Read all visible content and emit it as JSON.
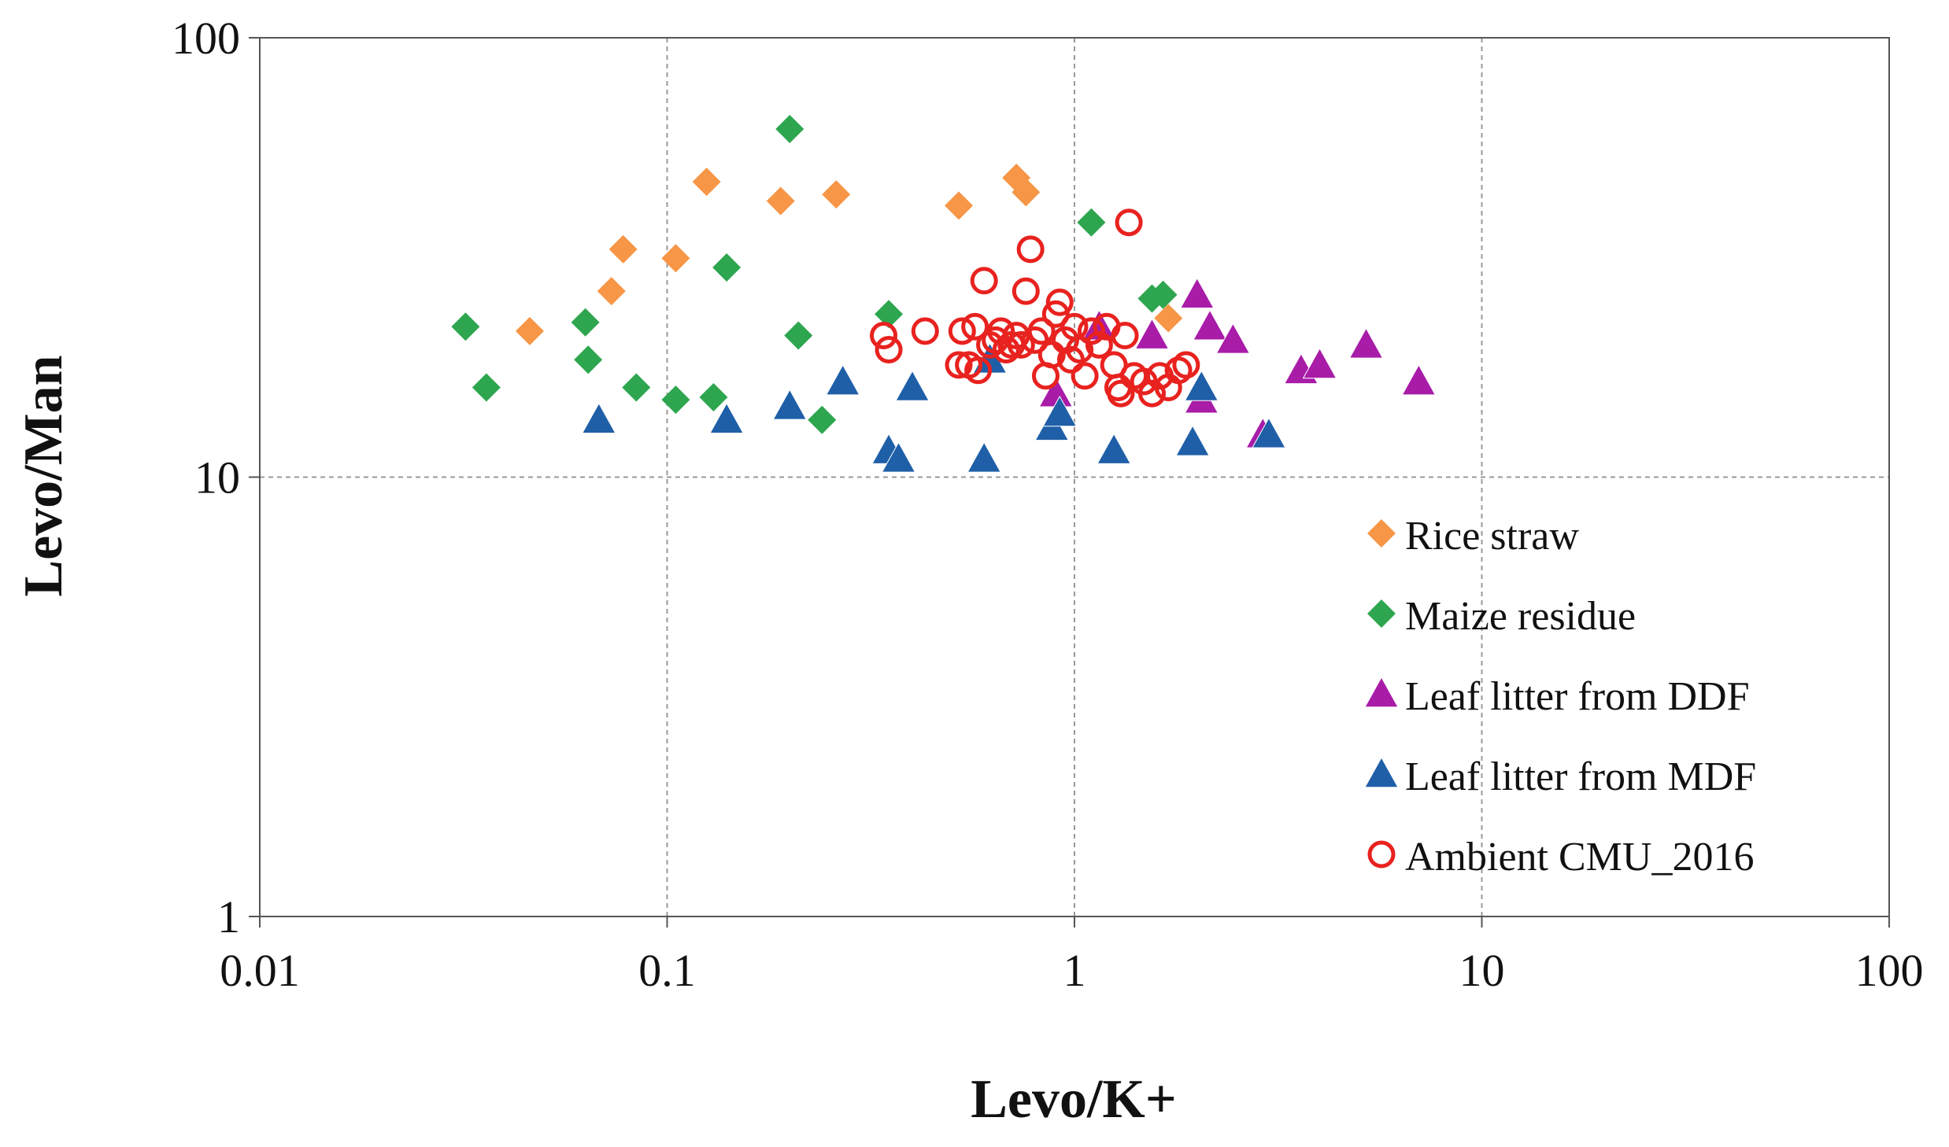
{
  "chart_data": {
    "type": "scatter",
    "title": "",
    "xlabel": "Levo/K+",
    "ylabel": "Levo/Man",
    "xscale": "log",
    "yscale": "log",
    "xlim": [
      0.01,
      100
    ],
    "ylim": [
      1,
      100
    ],
    "xticks": [
      {
        "value": 0.01,
        "label": "0.01"
      },
      {
        "value": 0.1,
        "label": "0.1"
      },
      {
        "value": 1,
        "label": "1"
      },
      {
        "value": 10,
        "label": "10"
      },
      {
        "value": 100,
        "label": "100"
      }
    ],
    "yticks": [
      {
        "value": 1,
        "label": "1"
      },
      {
        "value": 10,
        "label": "10"
      },
      {
        "value": 100,
        "label": "100"
      }
    ],
    "grid": true,
    "legend_position": "right",
    "series": [
      {
        "name": "Rice straw",
        "marker": "diamond",
        "color": "#F79646",
        "points": [
          [
            0.046,
            21.5
          ],
          [
            0.073,
            26.5
          ],
          [
            0.078,
            33
          ],
          [
            0.105,
            31.5
          ],
          [
            0.125,
            47
          ],
          [
            0.19,
            42.5
          ],
          [
            0.26,
            44
          ],
          [
            0.52,
            41.5
          ],
          [
            0.72,
            48
          ],
          [
            0.76,
            44.5
          ],
          [
            1.7,
            23
          ]
        ]
      },
      {
        "name": "Maize residue",
        "marker": "diamond",
        "color": "#2EA64F",
        "points": [
          [
            0.032,
            22
          ],
          [
            0.036,
            16
          ],
          [
            0.063,
            22.5
          ],
          [
            0.064,
            18.5
          ],
          [
            0.084,
            16
          ],
          [
            0.105,
            15
          ],
          [
            0.13,
            15.2
          ],
          [
            0.14,
            30
          ],
          [
            0.2,
            62
          ],
          [
            0.21,
            21
          ],
          [
            0.24,
            13.5
          ],
          [
            0.35,
            23.5
          ],
          [
            1.1,
            38
          ],
          [
            1.55,
            25.5
          ],
          [
            1.65,
            26
          ]
        ]
      },
      {
        "name": "Leaf litter from DDF",
        "marker": "triangle",
        "color": "#A81CA8",
        "points": [
          [
            0.9,
            15.5
          ],
          [
            1.15,
            22
          ],
          [
            1.55,
            21
          ],
          [
            2.0,
            26
          ],
          [
            2.05,
            15
          ],
          [
            2.15,
            22
          ],
          [
            2.45,
            20.5
          ],
          [
            2.9,
            12.5
          ],
          [
            3.6,
            17.5
          ],
          [
            4.0,
            18
          ],
          [
            5.2,
            20
          ],
          [
            7.0,
            16.5
          ]
        ]
      },
      {
        "name": "Leaf litter from MDF",
        "marker": "triangle",
        "color": "#1F5FA8",
        "points": [
          [
            0.068,
            13.5
          ],
          [
            0.14,
            13.5
          ],
          [
            0.2,
            14.5
          ],
          [
            0.27,
            16.5
          ],
          [
            0.35,
            11.5
          ],
          [
            0.37,
            11
          ],
          [
            0.4,
            16
          ],
          [
            0.6,
            11
          ],
          [
            0.62,
            18.5
          ],
          [
            0.88,
            13
          ],
          [
            0.92,
            14
          ],
          [
            1.25,
            11.5
          ],
          [
            1.95,
            12
          ],
          [
            2.05,
            16
          ],
          [
            3.0,
            12.5
          ]
        ]
      },
      {
        "name": "Ambient CMU_2016",
        "marker": "circle-open",
        "color": "#E8221F",
        "points": [
          [
            0.34,
            21
          ],
          [
            0.35,
            19.5
          ],
          [
            0.43,
            21.5
          ],
          [
            0.52,
            18
          ],
          [
            0.53,
            21.5
          ],
          [
            0.55,
            18
          ],
          [
            0.57,
            22
          ],
          [
            0.58,
            17.5
          ],
          [
            0.6,
            28
          ],
          [
            0.62,
            20
          ],
          [
            0.64,
            20.5
          ],
          [
            0.66,
            21.5
          ],
          [
            0.68,
            19.5
          ],
          [
            0.7,
            20
          ],
          [
            0.72,
            21
          ],
          [
            0.74,
            20
          ],
          [
            0.76,
            26.5
          ],
          [
            0.78,
            33
          ],
          [
            0.8,
            20.5
          ],
          [
            0.83,
            21.5
          ],
          [
            0.85,
            17
          ],
          [
            0.88,
            19
          ],
          [
            0.9,
            23.5
          ],
          [
            0.92,
            25
          ],
          [
            0.95,
            20.5
          ],
          [
            0.98,
            18.5
          ],
          [
            1.0,
            22
          ],
          [
            1.03,
            19.5
          ],
          [
            1.06,
            17
          ],
          [
            1.1,
            21.5
          ],
          [
            1.15,
            20
          ],
          [
            1.2,
            22
          ],
          [
            1.25,
            18
          ],
          [
            1.28,
            16
          ],
          [
            1.3,
            15.5
          ],
          [
            1.33,
            21
          ],
          [
            1.36,
            38
          ],
          [
            1.4,
            17
          ],
          [
            1.48,
            16.5
          ],
          [
            1.55,
            15.5
          ],
          [
            1.62,
            17
          ],
          [
            1.7,
            16
          ],
          [
            1.8,
            17.5
          ],
          [
            1.88,
            18
          ]
        ]
      }
    ]
  }
}
